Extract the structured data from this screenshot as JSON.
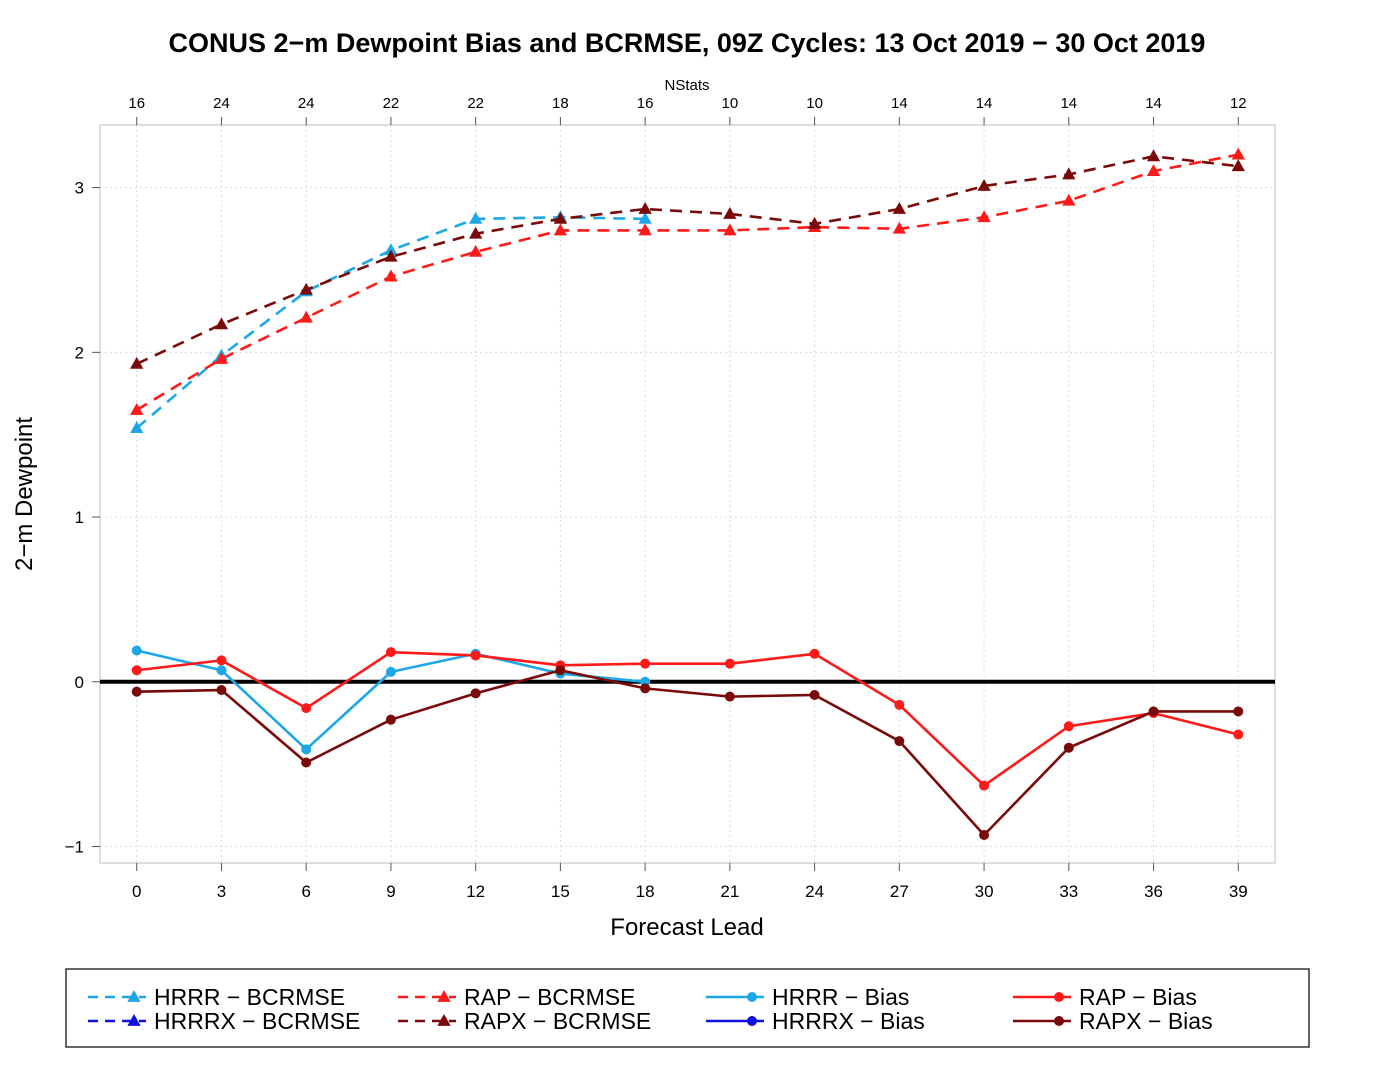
{
  "chart_data": {
    "type": "line",
    "title": "CONUS 2−m Dewpoint Bias and BCRMSE, 09Z Cycles: 13 Oct 2019 − 30 Oct 2019",
    "xlabel": "Forecast Lead",
    "ylabel": "2−m Dewpoint",
    "top_axis_label": "NStats",
    "x": [
      0,
      3,
      6,
      9,
      12,
      15,
      18,
      21,
      24,
      27,
      30,
      33,
      36,
      39
    ],
    "x_tick_labels": [
      "0",
      "3",
      "6",
      "9",
      "12",
      "15",
      "18",
      "21",
      "24",
      "27",
      "30",
      "33",
      "36",
      "39"
    ],
    "nstats": [
      "16",
      "24",
      "24",
      "22",
      "22",
      "18",
      "16",
      "10",
      "10",
      "14",
      "14",
      "14",
      "14",
      "12"
    ],
    "xlim": [
      -1.3,
      40.3
    ],
    "ylim": [
      -1.1,
      3.38
    ],
    "y_ticks": [
      -1,
      0,
      1,
      2,
      3
    ],
    "y_tick_labels": [
      "−1",
      "0",
      "1",
      "2",
      "3"
    ],
    "grid": true,
    "zero_line": true,
    "legend_position": "bottom",
    "series": [
      {
        "name": "HRRR − BCRMSE",
        "color": "#1ea7e8",
        "dash": true,
        "marker": "triangle",
        "values": [
          1.54,
          1.98,
          2.37,
          2.62,
          2.81,
          2.82,
          2.81,
          null,
          null,
          null,
          null,
          null,
          null,
          null
        ]
      },
      {
        "name": "HRRRX − BCRMSE",
        "color": "#1010e0",
        "dash": true,
        "marker": "triangle",
        "values": [
          null,
          null,
          null,
          null,
          null,
          null,
          null,
          null,
          null,
          null,
          null,
          null,
          null,
          null
        ]
      },
      {
        "name": "RAP − BCRMSE",
        "color": "#ff1a1a",
        "dash": true,
        "marker": "triangle",
        "values": [
          1.65,
          1.96,
          2.21,
          2.46,
          2.61,
          2.74,
          2.74,
          2.74,
          2.76,
          2.75,
          2.82,
          2.92,
          3.1,
          3.2
        ]
      },
      {
        "name": "RAPX − BCRMSE",
        "color": "#7a0a0a",
        "dash": true,
        "marker": "triangle",
        "values": [
          1.93,
          2.17,
          2.38,
          2.58,
          2.72,
          2.81,
          2.87,
          2.84,
          2.78,
          2.87,
          3.01,
          3.08,
          3.19,
          3.13
        ]
      },
      {
        "name": "HRRR − Bias",
        "color": "#1ea7e8",
        "dash": false,
        "marker": "circle",
        "values": [
          0.19,
          0.07,
          -0.41,
          0.06,
          0.17,
          0.05,
          0.0,
          null,
          null,
          null,
          null,
          null,
          null,
          null
        ]
      },
      {
        "name": "HRRRX − Bias",
        "color": "#1010e0",
        "dash": false,
        "marker": "circle",
        "values": [
          null,
          null,
          null,
          null,
          null,
          null,
          null,
          null,
          null,
          null,
          null,
          null,
          null,
          null
        ]
      },
      {
        "name": "RAP − Bias",
        "color": "#ff1a1a",
        "dash": false,
        "marker": "circle",
        "values": [
          0.07,
          0.13,
          -0.16,
          0.18,
          0.16,
          0.1,
          0.11,
          0.11,
          0.17,
          -0.14,
          -0.63,
          -0.27,
          -0.19,
          -0.32
        ]
      },
      {
        "name": "RAPX − Bias",
        "color": "#7a0a0a",
        "dash": false,
        "marker": "circle",
        "values": [
          -0.06,
          -0.05,
          -0.49,
          -0.23,
          -0.07,
          0.07,
          -0.04,
          -0.09,
          -0.08,
          -0.36,
          -0.93,
          -0.4,
          -0.18,
          -0.18
        ]
      }
    ]
  }
}
